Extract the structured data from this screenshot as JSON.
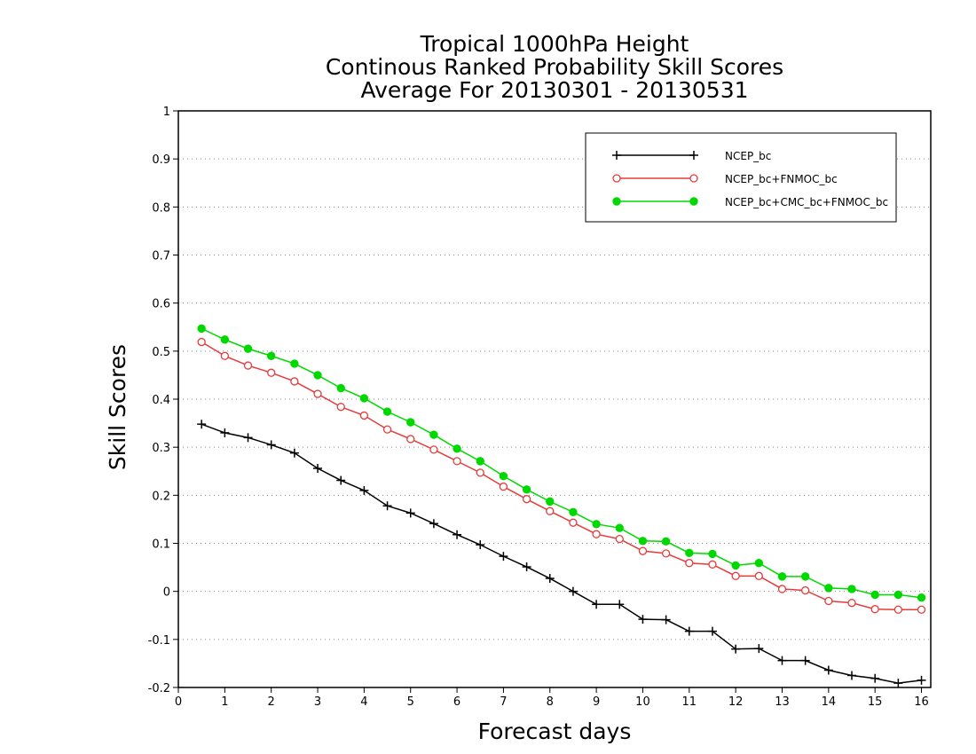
{
  "chart_data": {
    "type": "line",
    "title": [
      "Tropical 1000hPa Height",
      "Continous Ranked Probability Skill Scores",
      "Average For 20130301 - 20130531"
    ],
    "xlabel": "Forecast days",
    "ylabel": "Skill Scores",
    "xlim": [
      0,
      16.2
    ],
    "ylim": [
      -0.2,
      1
    ],
    "xticks": [
      "0",
      "1",
      "2",
      "3",
      "4",
      "5",
      "6",
      "7",
      "8",
      "9",
      "10",
      "11",
      "12",
      "13",
      "14",
      "15",
      "16"
    ],
    "yticks": [
      "1",
      "0.9",
      "0.8",
      "0.7",
      "0.6",
      "0.5",
      "0.4",
      "0.3",
      "0.2",
      "0.1",
      "0",
      "-0.1",
      "-0.2"
    ],
    "grid": "horizontal dotted",
    "legend_position": "top-right",
    "x": [
      0.5,
      1,
      1.5,
      2,
      2.5,
      3,
      3.5,
      4,
      4.5,
      5,
      5.5,
      6,
      6.5,
      7,
      7.5,
      8,
      8.5,
      9,
      9.5,
      10,
      10.5,
      11,
      11.5,
      12,
      12.5,
      13,
      13.5,
      14,
      14.5,
      15,
      15.5,
      16
    ],
    "series": [
      {
        "name": "NCEP_bc",
        "color": "#000000",
        "marker": "plus",
        "values": [
          0.348,
          0.33,
          0.32,
          0.305,
          0.288,
          0.256,
          0.231,
          0.21,
          0.178,
          0.163,
          0.141,
          0.118,
          0.097,
          0.073,
          0.051,
          0.027,
          0.0,
          -0.027,
          -0.027,
          -0.058,
          -0.059,
          -0.083,
          -0.083,
          -0.12,
          -0.119,
          -0.144,
          -0.144,
          -0.164,
          -0.175,
          -0.181,
          -0.191,
          -0.185
        ]
      },
      {
        "name": "NCEP_bc+FNMOC_bc",
        "color": "#e53b3b",
        "marker": "open-circle",
        "values": [
          0.519,
          0.49,
          0.47,
          0.455,
          0.437,
          0.411,
          0.384,
          0.366,
          0.337,
          0.317,
          0.295,
          0.271,
          0.247,
          0.218,
          0.192,
          0.167,
          0.143,
          0.119,
          0.109,
          0.084,
          0.079,
          0.059,
          0.056,
          0.032,
          0.032,
          0.005,
          0.002,
          -0.02,
          -0.024,
          -0.037,
          -0.038,
          -0.038
        ]
      },
      {
        "name": "NCEP_bc+CMC_bc+FNMOC_bc",
        "color": "#00d800",
        "marker": "filled-circle",
        "values": [
          0.547,
          0.524,
          0.505,
          0.49,
          0.474,
          0.45,
          0.423,
          0.402,
          0.374,
          0.352,
          0.326,
          0.297,
          0.271,
          0.24,
          0.212,
          0.187,
          0.165,
          0.14,
          0.132,
          0.105,
          0.104,
          0.08,
          0.078,
          0.054,
          0.059,
          0.031,
          0.031,
          0.007,
          0.005,
          -0.007,
          -0.007,
          -0.013
        ]
      }
    ]
  }
}
